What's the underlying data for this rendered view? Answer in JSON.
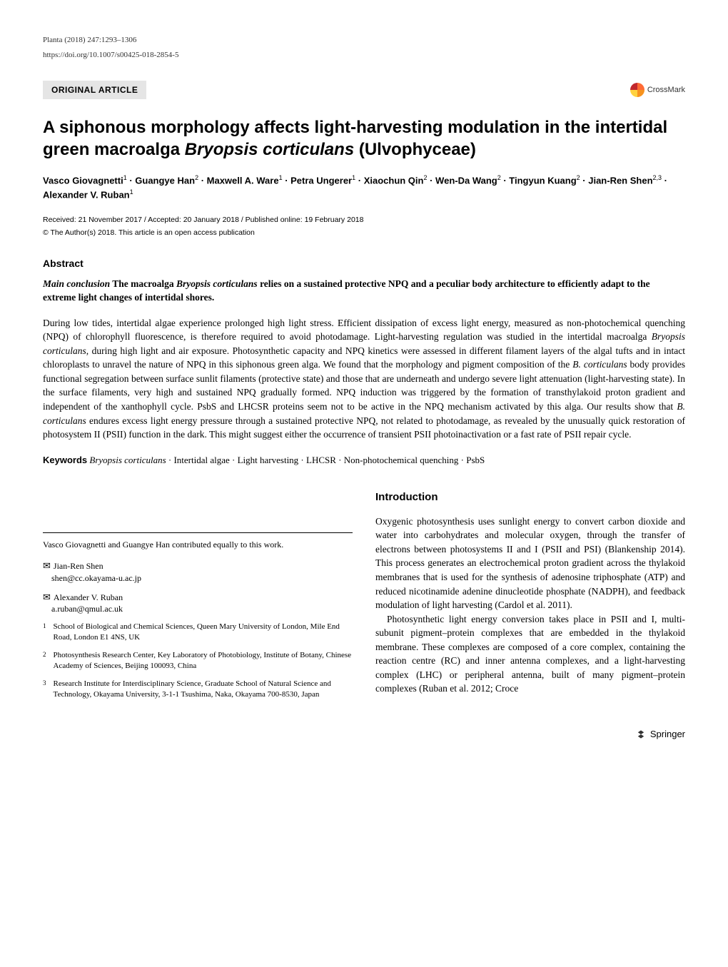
{
  "journal_citation": "Planta (2018) 247:1293–1306",
  "doi": "https://doi.org/10.1007/s00425-018-2854-5",
  "article_type": "ORIGINAL ARTICLE",
  "crossmark_label": "CrossMark",
  "title_part1": "A siphonous morphology affects light-harvesting modulation in the intertidal green macroalga ",
  "title_italic": "Bryopsis corticulans",
  "title_part2": " (Ulvophyceae)",
  "authors_html": "Vasco Giovagnetti<sup>1</sup> · Guangye Han<sup>2</sup> · Maxwell A. Ware<sup>1</sup> · Petra Ungerer<sup>1</sup> · Xiaochun Qin<sup>2</sup> · Wen-Da Wang<sup>2</sup> · Tingyun Kuang<sup>2</sup> · Jian-Ren Shen<sup>2,3</sup> · Alexander V. Ruban<sup>1</sup>",
  "dates": "Received: 21 November 2017 / Accepted: 20 January 2018 / Published online: 19 February 2018",
  "copyright": "© The Author(s) 2018. This article is an open access publication",
  "abstract_heading": "Abstract",
  "main_conclusion_label": "Main conclusion",
  "main_conclusion_p1": "  The macroalga ",
  "main_conclusion_italic": "Bryopsis corticulans",
  "main_conclusion_p2": " relies on a sustained protective NPQ and a peculiar body architecture to efficiently adapt to the extreme light changes of intertidal shores.",
  "abstract_body_html": "During low tides, intertidal algae experience prolonged high light stress. Efficient dissipation of excess light energy, measured as non-photochemical quenching (NPQ) of chlorophyll fluorescence, is therefore required to avoid photodamage. Light-harvesting regulation was studied in the intertidal macroalga <span class=\"italic\">Bryopsis corticulans</span>, during high light and air exposure. Photosynthetic capacity and NPQ kinetics were assessed in different filament layers of the algal tufts and in intact chloroplasts to unravel the nature of NPQ in this siphonous green alga. We found that the morphology and pigment composition of the <span class=\"italic\">B. corticulans</span> body provides functional segregation between surface sunlit filaments (protective state) and those that are underneath and undergo severe light attenuation (light-harvesting state). In the surface filaments, very high and sustained NPQ gradually formed. NPQ induction was triggered by the formation of transthylakoid proton gradient and independent of the xanthophyll cycle. PsbS and LHCSR proteins seem not to be active in the NPQ mechanism activated by this alga. Our results show that <span class=\"italic\">B. corticulans</span> endures excess light energy pressure through a sustained protective NPQ, not related to photodamage, as revealed by the unusually quick restoration of photosystem II (PSII) function in the dark. This might suggest either the occurrence of transient PSII photoinactivation or a fast rate of PSII repair cycle.",
  "keywords_label": "Keywords",
  "keywords_html": "  <span class=\"italic\">Bryopsis corticulans</span> · Intertidal algae · Light harvesting · LHCSR · Non-photochemical quenching · PsbS",
  "contrib_note": "Vasco Giovagnetti and Guangye Han contributed equally to this work.",
  "corr": [
    {
      "name": "Jian-Ren Shen",
      "email": "shen@cc.okayama-u.ac.jp"
    },
    {
      "name": "Alexander V. Ruban",
      "email": "a.ruban@qmul.ac.uk"
    }
  ],
  "affiliations": [
    {
      "num": "1",
      "text": "School of Biological and Chemical Sciences, Queen Mary University of London, Mile End Road, London E1 4NS, UK"
    },
    {
      "num": "2",
      "text": "Photosynthesis Research Center, Key Laboratory of Photobiology, Institute of Botany, Chinese Academy of Sciences, Beijing 100093, China"
    },
    {
      "num": "3",
      "text": "Research Institute for Interdisciplinary Science, Graduate School of Natural Science and Technology, Okayama University, 3-1-1 Tsushima, Naka, Okayama 700-8530, Japan"
    }
  ],
  "intro_heading": "Introduction",
  "intro_p1": "Oxygenic photosynthesis uses sunlight energy to convert carbon dioxide and water into carbohydrates and molecular oxygen, through the transfer of electrons between photosystems II and I (PSII and PSI) (Blankenship 2014). This process generates an electrochemical proton gradient across the thylakoid membranes that is used for the synthesis of adenosine triphosphate (ATP) and reduced nicotinamide adenine dinucleotide phosphate (NADPH), and feedback modulation of light harvesting (Cardol et al. 2011).",
  "intro_p2": "Photosynthetic light energy conversion takes place in PSII and I, multi-subunit pigment–protein complexes that are embedded in the thylakoid membrane. These complexes are composed of a core complex, containing the reaction centre (RC) and inner antenna complexes, and a light-harvesting complex (LHC) or peripheral antenna, built of many pigment–protein complexes (Ruban et al. 2012; Croce",
  "publisher": "Springer"
}
